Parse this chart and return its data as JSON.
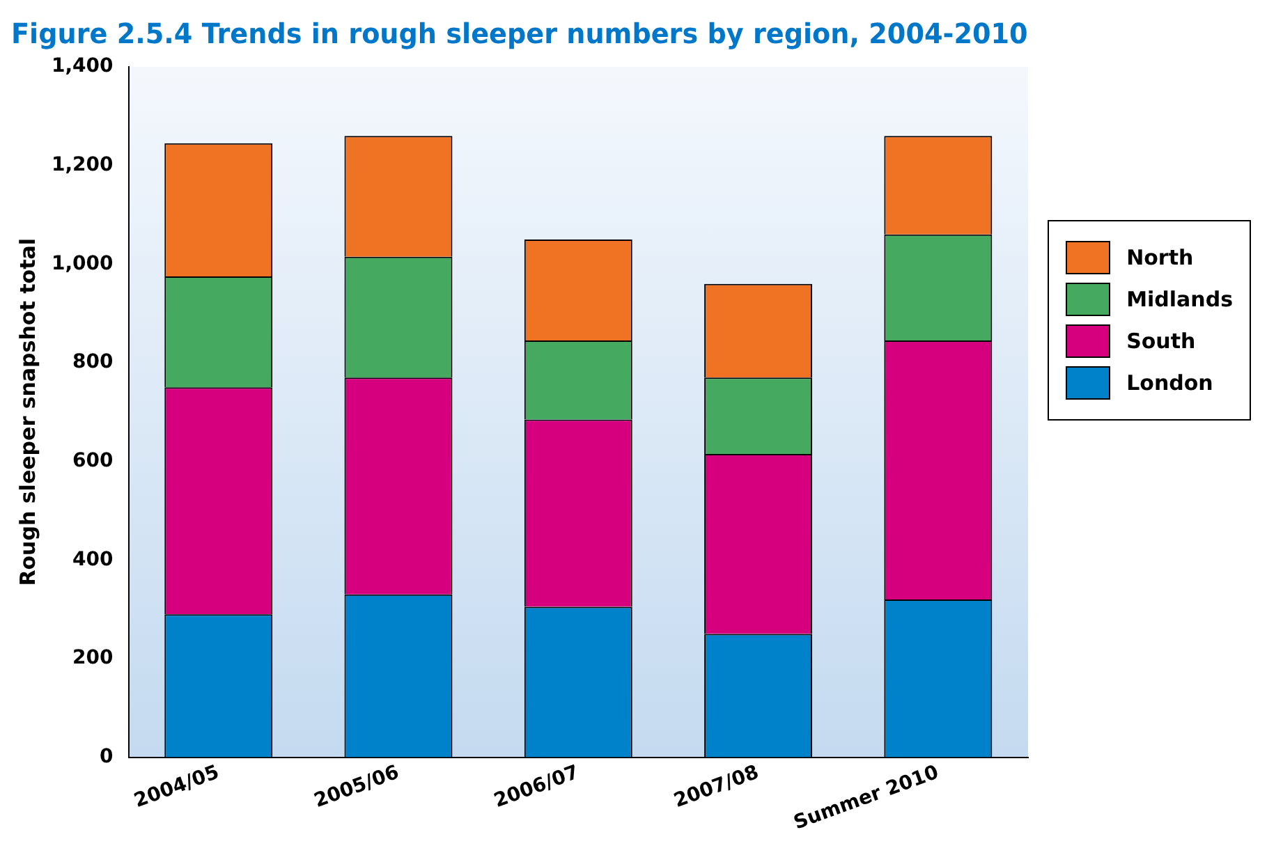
{
  "chart_data": {
    "type": "bar",
    "stacked": true,
    "title": "Figure 2.5.4 Trends in rough sleeper numbers by region, 2004-2010",
    "ylabel": "Rough sleeper snapshot total",
    "categories": [
      "2004/05",
      "2005/06",
      "2006/07",
      "2007/08",
      "Summer 2010"
    ],
    "series": [
      {
        "name": "London",
        "color": "#0082ca",
        "values": [
          290,
          330,
          305,
          250,
          320
        ]
      },
      {
        "name": "South",
        "color": "#d6007e",
        "values": [
          460,
          440,
          380,
          365,
          525
        ]
      },
      {
        "name": "Midlands",
        "color": "#45aa5f",
        "values": [
          225,
          245,
          160,
          155,
          215
        ]
      },
      {
        "name": "North",
        "color": "#f07324",
        "values": [
          270,
          245,
          205,
          190,
          200
        ]
      }
    ],
    "ylim": [
      0,
      1400
    ],
    "yticks": [
      {
        "value": 0,
        "label": "0"
      },
      {
        "value": 200,
        "label": "200"
      },
      {
        "value": 400,
        "label": "400"
      },
      {
        "value": 600,
        "label": "600"
      },
      {
        "value": 800,
        "label": "800"
      },
      {
        "value": 1000,
        "label": "1,000"
      },
      {
        "value": 1200,
        "label": "1,200"
      },
      {
        "value": 1400,
        "label": "1,400"
      }
    ],
    "grid": false,
    "legend": "right"
  }
}
